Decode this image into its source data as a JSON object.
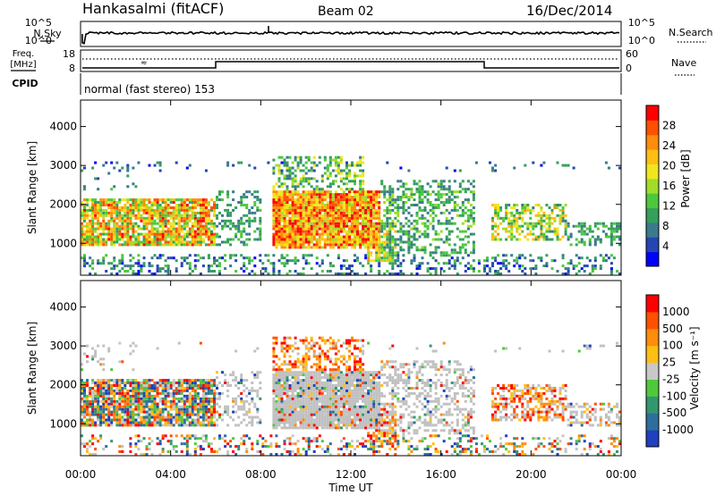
{
  "header": {
    "title": "Hankasalmi (fitACF)",
    "beam": "Beam 02",
    "date": "16/Dec/2014"
  },
  "top_panels": {
    "nsky_label": "N.Sky",
    "nsearch_label": "N.Search",
    "noise_ticks": [
      "10^5",
      "10^0"
    ],
    "freq_label": "Freq.",
    "freq_unit": "[MHz]",
    "freq_ticks": [
      "18",
      "8"
    ],
    "nave_label": "Nave",
    "nave_ticks": [
      "60",
      "0"
    ],
    "cpid_label": "CPID",
    "cpid_text": "normal (fast stereo) 153"
  },
  "chart_data": [
    {
      "type": "heatmap",
      "name": "power",
      "ylabel": "Slant Range [km]",
      "xlabel": "Time UT",
      "x_ticks": [
        "00:00",
        "04:00",
        "08:00",
        "12:00",
        "16:00",
        "20:00",
        "00:00"
      ],
      "xlim_hours": [
        0,
        24
      ],
      "y_ticks": [
        "4000",
        "3000",
        "2000",
        "1000"
      ],
      "ylim_km": [
        180,
        4680
      ],
      "colorbar": {
        "label": "Power [dB]",
        "ticks": [
          "28",
          "24",
          "20",
          "16",
          "12",
          "8",
          "4"
        ],
        "range": [
          0,
          32
        ],
        "colors": [
          "#0000ff",
          "#2545b4",
          "#3a7a8c",
          "#34a05a",
          "#4cc83c",
          "#a0dc28",
          "#f0e61e",
          "#ffbe14",
          "#ff8c0a",
          "#ff5000",
          "#ff0000"
        ]
      }
    },
    {
      "type": "heatmap",
      "name": "velocity",
      "ylabel": "Slant Range [km]",
      "xlabel": "Time UT",
      "x_ticks": [
        "00:00",
        "04:00",
        "08:00",
        "12:00",
        "16:00",
        "20:00",
        "00:00"
      ],
      "xlim_hours": [
        0,
        24
      ],
      "y_ticks": [
        "4000",
        "3000",
        "2000",
        "1000"
      ],
      "ylim_km": [
        180,
        4680
      ],
      "colorbar": {
        "label": "Velocity [m s⁻¹]",
        "ticks": [
          "1000",
          "500",
          "100",
          "25",
          "-25",
          "-100",
          "-500",
          "-1000"
        ],
        "colors": [
          "#2040c0",
          "#2e6e9c",
          "#34966e",
          "#50c83c",
          "#c8c8c8",
          "#ffbe14",
          "#ff8c0a",
          "#ff5000",
          "#ff0000"
        ]
      },
      "ground_scatter_color": "#c0c0c0"
    }
  ]
}
